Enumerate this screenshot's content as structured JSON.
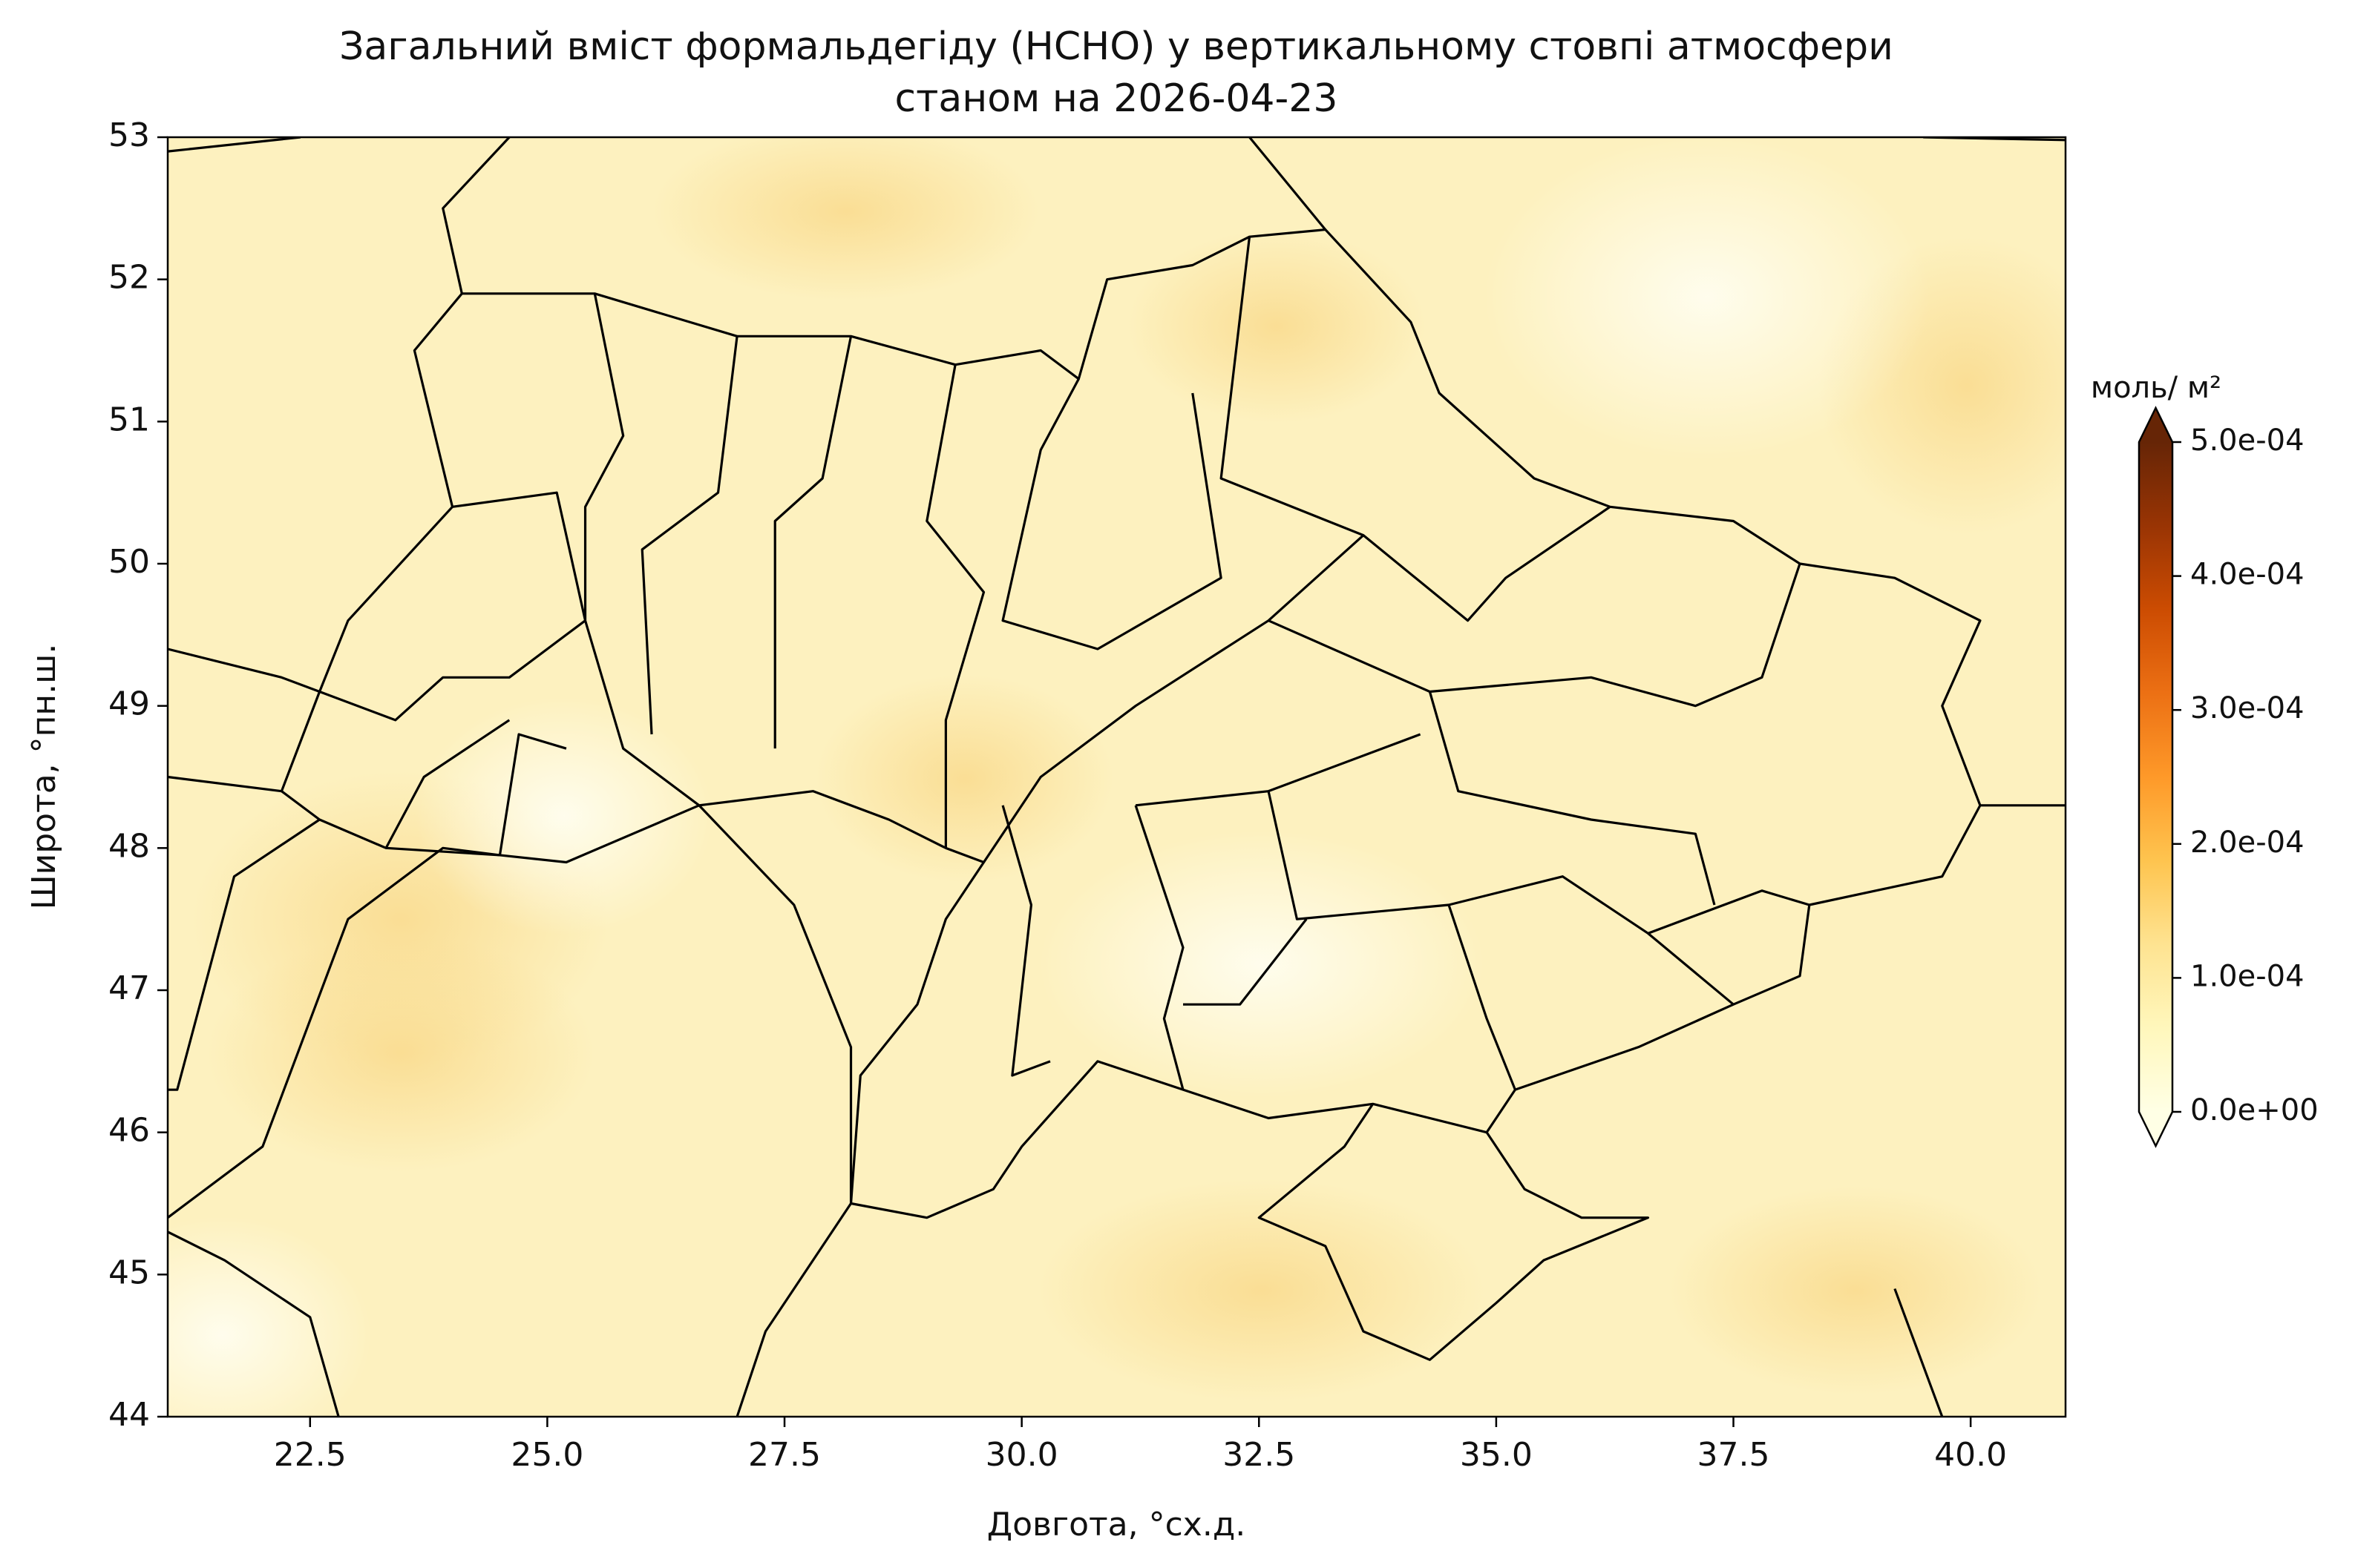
{
  "chart_data": {
    "type": "map",
    "title": "Загальний вміст формальдегіду (HCHO) у вертикальному стовпі атмосфери",
    "subtitle": "станом на 2026-04-23",
    "xlabel": "Довгота, °сх.д.",
    "ylabel": "Широта, °пн.ш.",
    "xlim": [
      21,
      41
    ],
    "ylim": [
      44,
      53
    ],
    "xticks": [
      22.5,
      {
        "value": 25,
        "label": "25.0"
      },
      27.5,
      {
        "value": 30,
        "label": "30.0"
      },
      32.5,
      {
        "value": 35,
        "label": "35.0"
      },
      37.5,
      {
        "value": 40,
        "label": "40.0"
      }
    ],
    "yticks": [
      44,
      45,
      46,
      47,
      48,
      49,
      50,
      51,
      52,
      53
    ],
    "colorbar": {
      "label": "моль/ м²",
      "colormap": "YlOrBr",
      "extend": "both",
      "lim": [
        0,
        0.0005
      ],
      "ticks": [
        {
          "value": 0,
          "label": "0.0e+00"
        },
        {
          "value": 0.0001,
          "label": "1.0e-04"
        },
        {
          "value": 0.0002,
          "label": "2.0e-04"
        },
        {
          "value": 0.0003,
          "label": "3.0e-04"
        },
        {
          "value": 0.0004,
          "label": "4.0e-04"
        },
        {
          "value": 0.0005,
          "label": "5.0e-04"
        }
      ]
    }
  }
}
